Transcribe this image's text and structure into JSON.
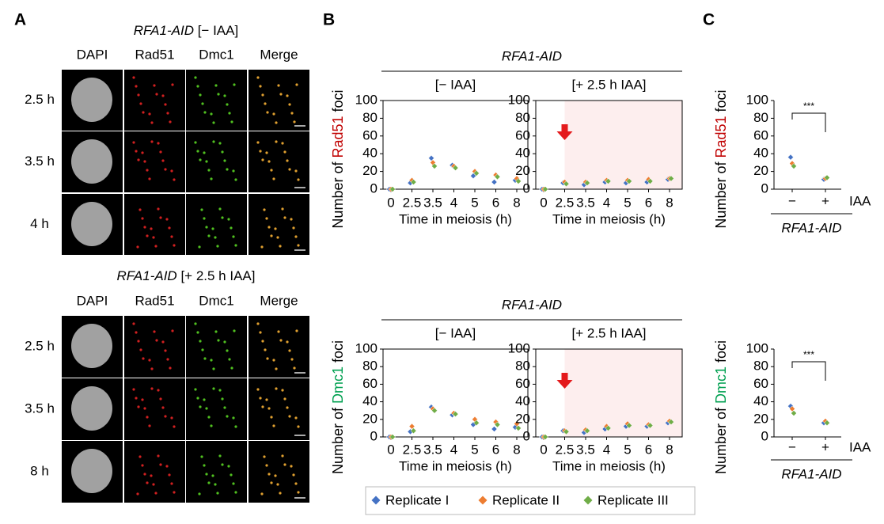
{
  "panel_labels": [
    "A",
    "B",
    "C"
  ],
  "images": [
    {
      "gene": "RFA1-AID",
      "condition": " [− IAA]",
      "columns": [
        "DAPI",
        "Rad51",
        "Dmc1",
        "Merge"
      ],
      "rows": [
        "2.5 h",
        "3.5 h",
        "4 h"
      ]
    },
    {
      "gene": "RFA1-AID",
      "condition": " [+ 2.5 h IAA]",
      "columns": [
        "DAPI",
        "Rad51",
        "Dmc1",
        "Merge"
      ],
      "rows": [
        "2.5 h",
        "3.5 h",
        "8 h"
      ]
    }
  ],
  "chart_data": [
    {
      "type": "strip",
      "supertitle": "RFA1-AID",
      "title": "[− IAA]",
      "ylabel": [
        "Number of ",
        "Rad51",
        " foci"
      ],
      "ylabel_color": "#c00000",
      "xlabel": "Time in meiosis (h)",
      "categories": [
        "0",
        "2.5",
        "3.5",
        "4",
        "5",
        "6",
        "8"
      ],
      "ylim": [
        0,
        100
      ],
      "yticks": [
        0,
        20,
        40,
        60,
        80,
        100
      ],
      "frame": "box",
      "series": [
        {
          "name": "Replicate I",
          "color": "#4472c4",
          "values": [
            0,
            7,
            35,
            27,
            15,
            8,
            10
          ]
        },
        {
          "name": "Replicate II",
          "color": "#ed7d31",
          "values": [
            0,
            10,
            30,
            26,
            20,
            16,
            12
          ]
        },
        {
          "name": "Replicate III",
          "color": "#70ad47",
          "values": [
            0,
            8,
            26,
            24,
            18,
            14,
            9
          ]
        }
      ]
    },
    {
      "type": "strip",
      "title": "[+ 2.5 h IAA]",
      "xlabel": "Time in meiosis (h)",
      "categories": [
        "0",
        "2.5",
        "3.5",
        "4",
        "5",
        "6",
        "8"
      ],
      "ylim": [
        0,
        100
      ],
      "yticks": [
        0,
        20,
        40,
        60,
        80,
        100
      ],
      "frame": "box",
      "highlight": true,
      "highlight_color": "#fdeeee",
      "arrow_color": "#e41a1c",
      "series": [
        {
          "color": "#4472c4",
          "values": [
            0,
            7,
            5,
            8,
            7,
            8,
            11
          ]
        },
        {
          "color": "#ed7d31",
          "values": [
            0,
            8,
            8,
            10,
            10,
            11,
            12
          ]
        },
        {
          "color": "#70ad47",
          "values": [
            0,
            6,
            7,
            9,
            9,
            9,
            12
          ]
        }
      ]
    },
    {
      "type": "strip",
      "supertitle": "RFA1-AID",
      "title": "[− IAA]",
      "ylabel": [
        "Number of ",
        "Dmc1",
        " foci"
      ],
      "ylabel_color": "#00a050",
      "xlabel": "Time in meiosis (h)",
      "categories": [
        "0",
        "2.5",
        "3.5",
        "4",
        "5",
        "6",
        "8"
      ],
      "ylim": [
        0,
        100
      ],
      "yticks": [
        0,
        20,
        40,
        60,
        80,
        100
      ],
      "frame": "box",
      "series": [
        {
          "color": "#4472c4",
          "values": [
            0,
            6,
            34,
            25,
            14,
            9,
            11
          ]
        },
        {
          "color": "#ed7d31",
          "values": [
            0,
            12,
            32,
            27,
            20,
            17,
            15
          ]
        },
        {
          "color": "#70ad47",
          "values": [
            0,
            7,
            30,
            26,
            16,
            14,
            10
          ]
        }
      ]
    },
    {
      "type": "strip",
      "title": "[+ 2.5 h IAA]",
      "xlabel": "Time in meiosis (h)",
      "categories": [
        "0",
        "2.5",
        "3.5",
        "4",
        "5",
        "6",
        "8"
      ],
      "ylim": [
        0,
        100
      ],
      "yticks": [
        0,
        20,
        40,
        60,
        80,
        100
      ],
      "frame": "box",
      "highlight": true,
      "highlight_color": "#fdeeee",
      "arrow_color": "#e41a1c",
      "series": [
        {
          "color": "#4472c4",
          "values": [
            0,
            7,
            5,
            9,
            12,
            12,
            16
          ]
        },
        {
          "color": "#ed7d31",
          "values": [
            0,
            7,
            8,
            12,
            15,
            14,
            18
          ]
        },
        {
          "color": "#70ad47",
          "values": [
            0,
            6,
            7,
            10,
            13,
            13,
            17
          ]
        }
      ]
    },
    {
      "type": "strip",
      "ylabel": [
        "Number of ",
        "Rad51",
        " foci"
      ],
      "ylabel_color": "#c00000",
      "xlabel": "IAA",
      "group_label": "RFA1-AID",
      "significance": "***",
      "categories": [
        "−",
        "+"
      ],
      "ylim": [
        0,
        100
      ],
      "yticks": [
        0,
        20,
        40,
        60,
        80,
        100
      ],
      "frame": "axes",
      "series": [
        {
          "color": "#4472c4",
          "values": [
            36,
            11
          ]
        },
        {
          "color": "#ed7d31",
          "values": [
            29,
            12
          ]
        },
        {
          "color": "#70ad47",
          "values": [
            26,
            13
          ]
        }
      ]
    },
    {
      "type": "strip",
      "ylabel": [
        "Number of ",
        "Dmc1",
        " foci"
      ],
      "ylabel_color": "#00a050",
      "xlabel": "IAA",
      "group_label": "RFA1-AID",
      "significance": "***",
      "categories": [
        "−",
        "+"
      ],
      "ylim": [
        0,
        100
      ],
      "yticks": [
        0,
        20,
        40,
        60,
        80,
        100
      ],
      "frame": "axes",
      "series": [
        {
          "color": "#4472c4",
          "values": [
            35,
            16
          ]
        },
        {
          "color": "#ed7d31",
          "values": [
            32,
            18
          ]
        },
        {
          "color": "#70ad47",
          "values": [
            27,
            16
          ]
        }
      ]
    }
  ]
}
